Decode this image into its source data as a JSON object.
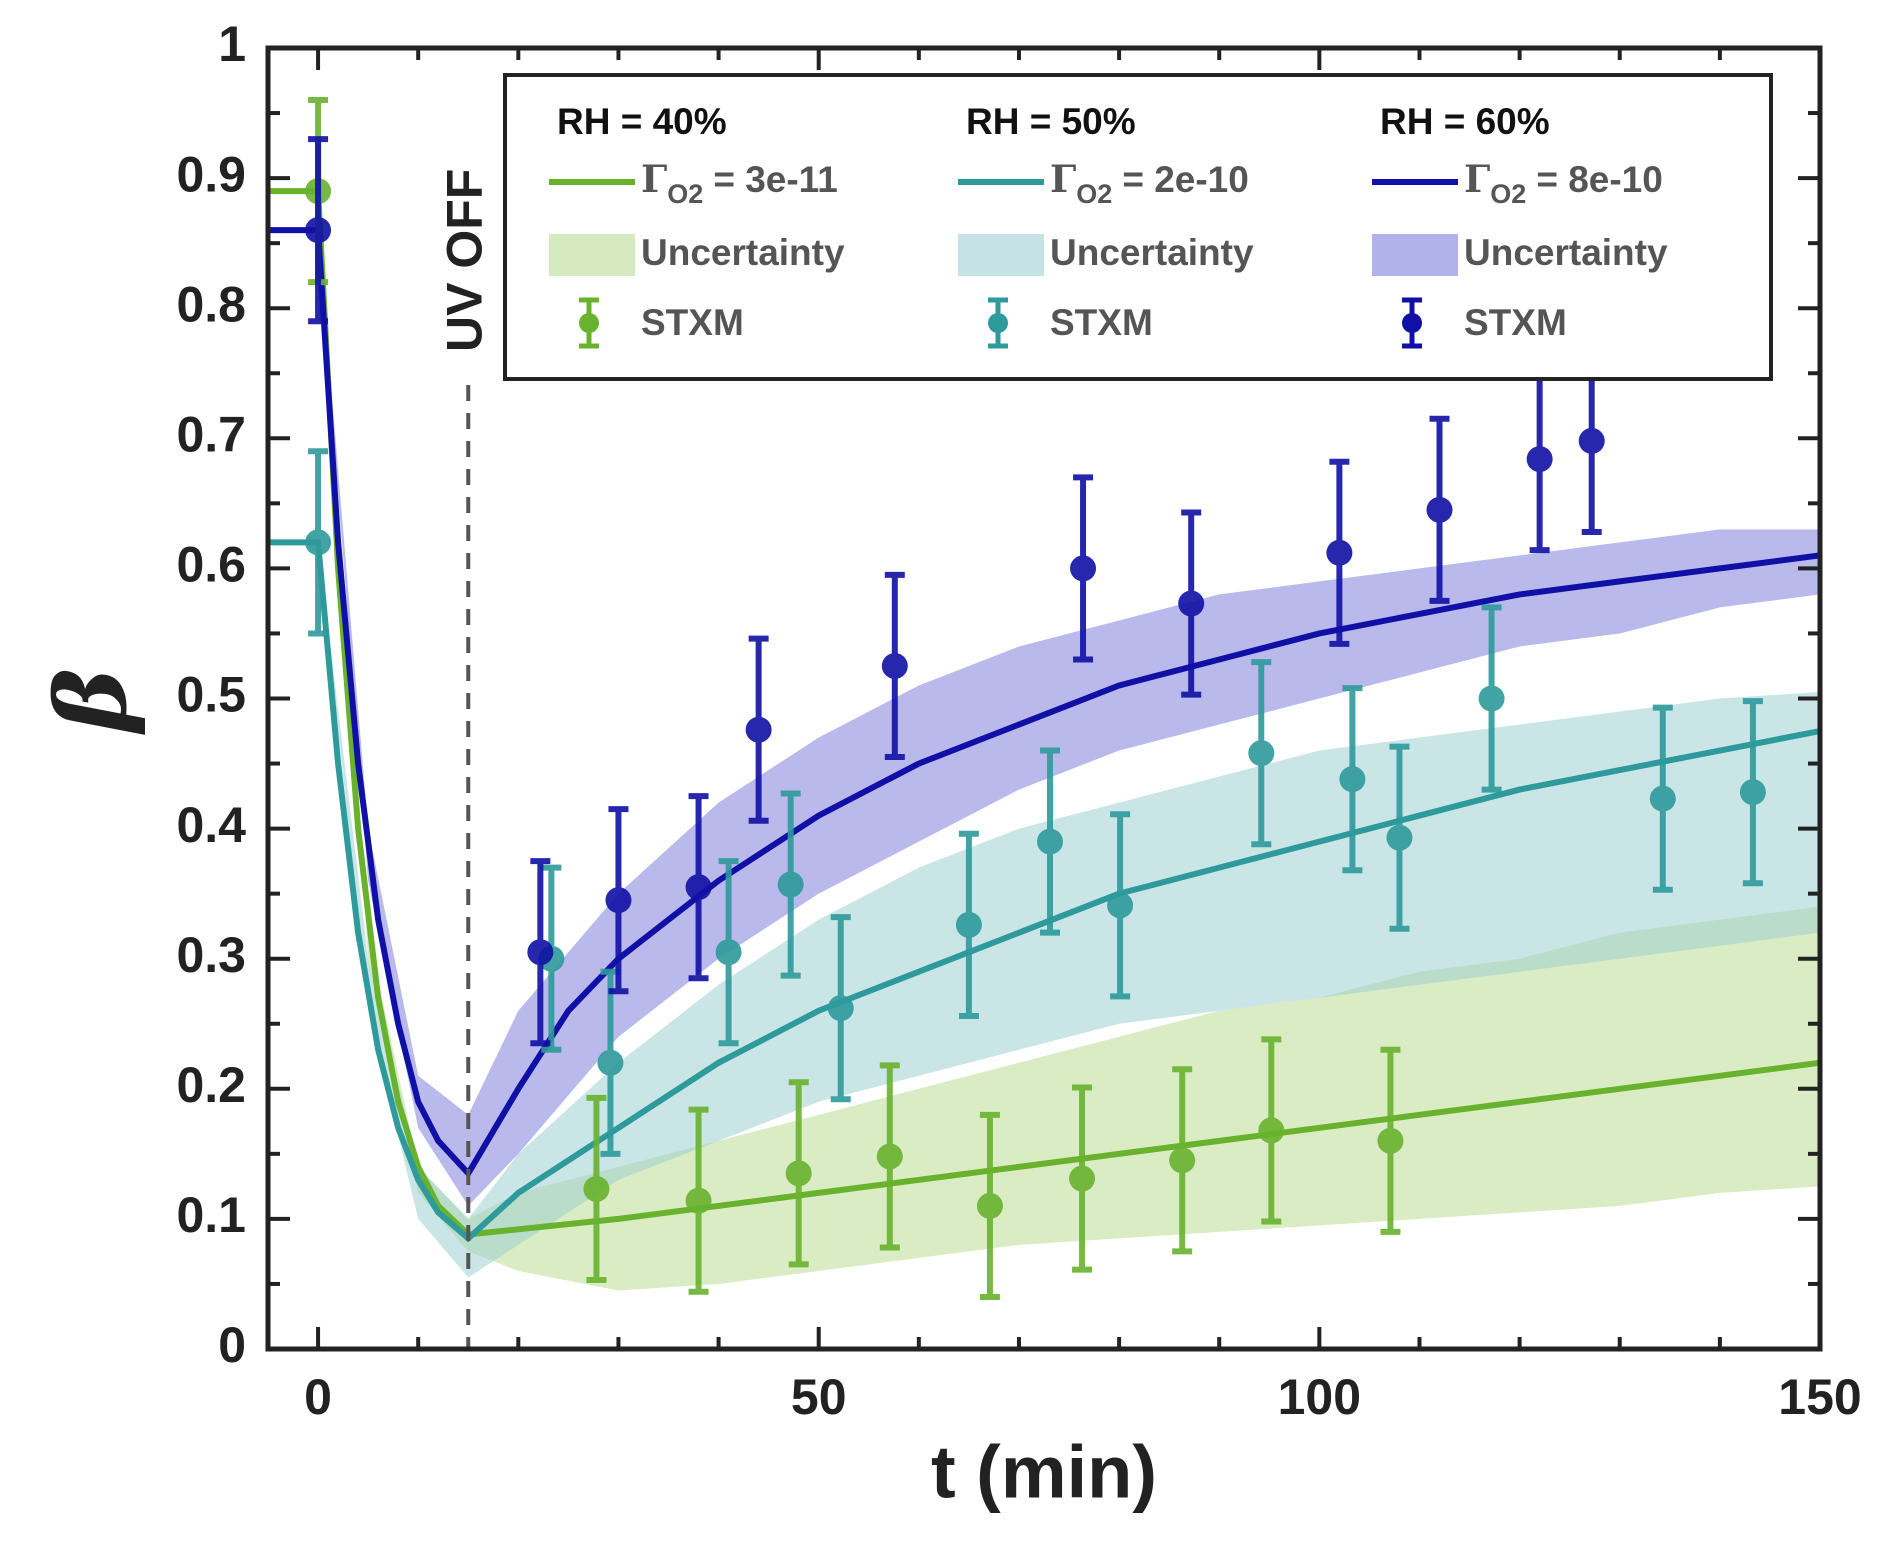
{
  "chart_data": {
    "type": "line",
    "xlabel": "t (min)",
    "ylabel": "β",
    "xlim": [
      -5,
      150
    ],
    "ylim": [
      0,
      1
    ],
    "xticks": [
      0,
      50,
      100,
      150
    ],
    "yticks": [
      0,
      0.1,
      0.2,
      0.3,
      0.4,
      0.5,
      0.6,
      0.7,
      0.8,
      0.9,
      1
    ],
    "xminorticks": [
      10,
      20,
      30,
      40,
      60,
      70,
      80,
      90,
      110,
      120,
      130,
      140
    ],
    "yminorticks": [
      0.05,
      0.15,
      0.25,
      0.35,
      0.45,
      0.55,
      0.65,
      0.75,
      0.85,
      0.95
    ],
    "annotation": {
      "text": "UV OFF",
      "x": 15
    },
    "series": [
      {
        "name": "RH = 40%",
        "color": "#69b22e",
        "band_color": "#b9dc94",
        "label_symbol": "Γ",
        "label_subscript": "O2",
        "label_text": "= 3e-11",
        "band_label": "Uncertainty",
        "points_label": "STXM",
        "x": [
          -5,
          0,
          2,
          4,
          6,
          8,
          10,
          12,
          15,
          30,
          50,
          70,
          90,
          110,
          130,
          150
        ],
        "values": [
          0.89,
          0.89,
          0.6,
          0.4,
          0.27,
          0.19,
          0.14,
          0.11,
          0.088,
          0.1,
          0.12,
          0.14,
          0.16,
          0.18,
          0.2,
          0.22
        ],
        "band": {
          "x": [
            0,
            5,
            10,
            15,
            20,
            30,
            40,
            50,
            60,
            70,
            80,
            90,
            100,
            110,
            120,
            130,
            140,
            150
          ],
          "lower": [
            0.89,
            0.3,
            0.12,
            0.075,
            0.06,
            0.045,
            0.05,
            0.06,
            0.07,
            0.08,
            0.085,
            0.09,
            0.095,
            0.1,
            0.105,
            0.11,
            0.12,
            0.125
          ],
          "upper": [
            0.89,
            0.32,
            0.14,
            0.1,
            0.12,
            0.14,
            0.16,
            0.18,
            0.2,
            0.22,
            0.24,
            0.26,
            0.27,
            0.29,
            0.3,
            0.32,
            0.33,
            0.34
          ]
        },
        "points": {
          "x": [
            0,
            27.8,
            38,
            48,
            57.1,
            67.1,
            76.3,
            86.3,
            95.2,
            107.1
          ],
          "values": [
            0.89,
            0.123,
            0.114,
            0.135,
            0.148,
            0.11,
            0.131,
            0.145,
            0.168,
            0.16
          ],
          "errors": [
            0.07,
            0.07,
            0.07,
            0.07,
            0.07,
            0.07,
            0.07,
            0.07,
            0.07,
            0.07
          ]
        }
      },
      {
        "name": "RH = 50%",
        "color": "#2e9a9c",
        "band_color": "#9fcfd2",
        "label_symbol": "Γ",
        "label_subscript": "O2",
        "label_text": "= 2e-10",
        "band_label": "Uncertainty",
        "points_label": "STXM",
        "x": [
          -5,
          0,
          2,
          4,
          6,
          8,
          10,
          12,
          15,
          20,
          30,
          40,
          50,
          60,
          70,
          80,
          90,
          100,
          110,
          120,
          130,
          140,
          150
        ],
        "values": [
          0.62,
          0.62,
          0.45,
          0.32,
          0.23,
          0.17,
          0.13,
          0.105,
          0.085,
          0.12,
          0.17,
          0.22,
          0.26,
          0.29,
          0.32,
          0.35,
          0.37,
          0.39,
          0.41,
          0.43,
          0.445,
          0.46,
          0.475
        ],
        "band": {
          "x": [
            0,
            5,
            10,
            15,
            20,
            30,
            40,
            50,
            60,
            70,
            80,
            90,
            100,
            110,
            120,
            130,
            140,
            150
          ],
          "lower": [
            0.62,
            0.26,
            0.1,
            0.055,
            0.08,
            0.13,
            0.16,
            0.19,
            0.21,
            0.23,
            0.25,
            0.26,
            0.27,
            0.28,
            0.29,
            0.3,
            0.31,
            0.32
          ],
          "upper": [
            0.62,
            0.3,
            0.14,
            0.1,
            0.15,
            0.22,
            0.28,
            0.33,
            0.37,
            0.4,
            0.42,
            0.44,
            0.46,
            0.47,
            0.48,
            0.49,
            0.5,
            0.505
          ]
        },
        "points": {
          "x": [
            0,
            23.3,
            29.2,
            41,
            47.2,
            52.2,
            65,
            73.1,
            80.1,
            94.2,
            103.3,
            108,
            117.2,
            134.3,
            143.3
          ],
          "values": [
            0.62,
            0.3,
            0.22,
            0.305,
            0.357,
            0.262,
            0.326,
            0.39,
            0.341,
            0.458,
            0.438,
            0.393,
            0.5,
            0.423,
            0.428
          ],
          "errors": [
            0.07,
            0.07,
            0.07,
            0.07,
            0.07,
            0.07,
            0.07,
            0.07,
            0.07,
            0.07,
            0.07,
            0.07,
            0.07,
            0.07,
            0.07
          ]
        }
      },
      {
        "name": "RH = 60%",
        "color": "#1010a6",
        "band_color": "#7f7fdc",
        "label_symbol": "Γ",
        "label_subscript": "O2",
        "label_text": "= 8e-10",
        "band_label": "Uncertainty",
        "points_label": "STXM",
        "x": [
          -5,
          0,
          2,
          4,
          6,
          8,
          10,
          12,
          15,
          20,
          25,
          30,
          40,
          50,
          60,
          70,
          80,
          90,
          100,
          110,
          120,
          130,
          140,
          150
        ],
        "values": [
          0.86,
          0.86,
          0.62,
          0.45,
          0.33,
          0.25,
          0.19,
          0.16,
          0.135,
          0.2,
          0.26,
          0.3,
          0.36,
          0.41,
          0.45,
          0.48,
          0.51,
          0.53,
          0.55,
          0.565,
          0.58,
          0.59,
          0.6,
          0.61
        ],
        "band": {
          "x": [
            0,
            5,
            10,
            15,
            20,
            30,
            40,
            50,
            60,
            70,
            80,
            90,
            100,
            110,
            120,
            130,
            140,
            150
          ],
          "lower": [
            0.86,
            0.36,
            0.17,
            0.11,
            0.15,
            0.24,
            0.3,
            0.35,
            0.39,
            0.43,
            0.46,
            0.48,
            0.5,
            0.52,
            0.54,
            0.55,
            0.57,
            0.58
          ],
          "upper": [
            0.86,
            0.4,
            0.21,
            0.18,
            0.26,
            0.35,
            0.42,
            0.47,
            0.51,
            0.54,
            0.56,
            0.58,
            0.59,
            0.6,
            0.61,
            0.62,
            0.63,
            0.63
          ]
        },
        "points": {
          "x": [
            0,
            22.2,
            30,
            38,
            44,
            57.6,
            76.4,
            87.2,
            102,
            112,
            122,
            127.2
          ],
          "values": [
            0.86,
            0.305,
            0.345,
            0.355,
            0.476,
            0.525,
            0.6,
            0.573,
            0.612,
            0.645,
            0.684,
            0.698
          ],
          "errors": [
            0.07,
            0.07,
            0.07,
            0.07,
            0.07,
            0.07,
            0.07,
            0.07,
            0.07,
            0.07,
            0.07,
            0.07
          ]
        }
      }
    ]
  }
}
